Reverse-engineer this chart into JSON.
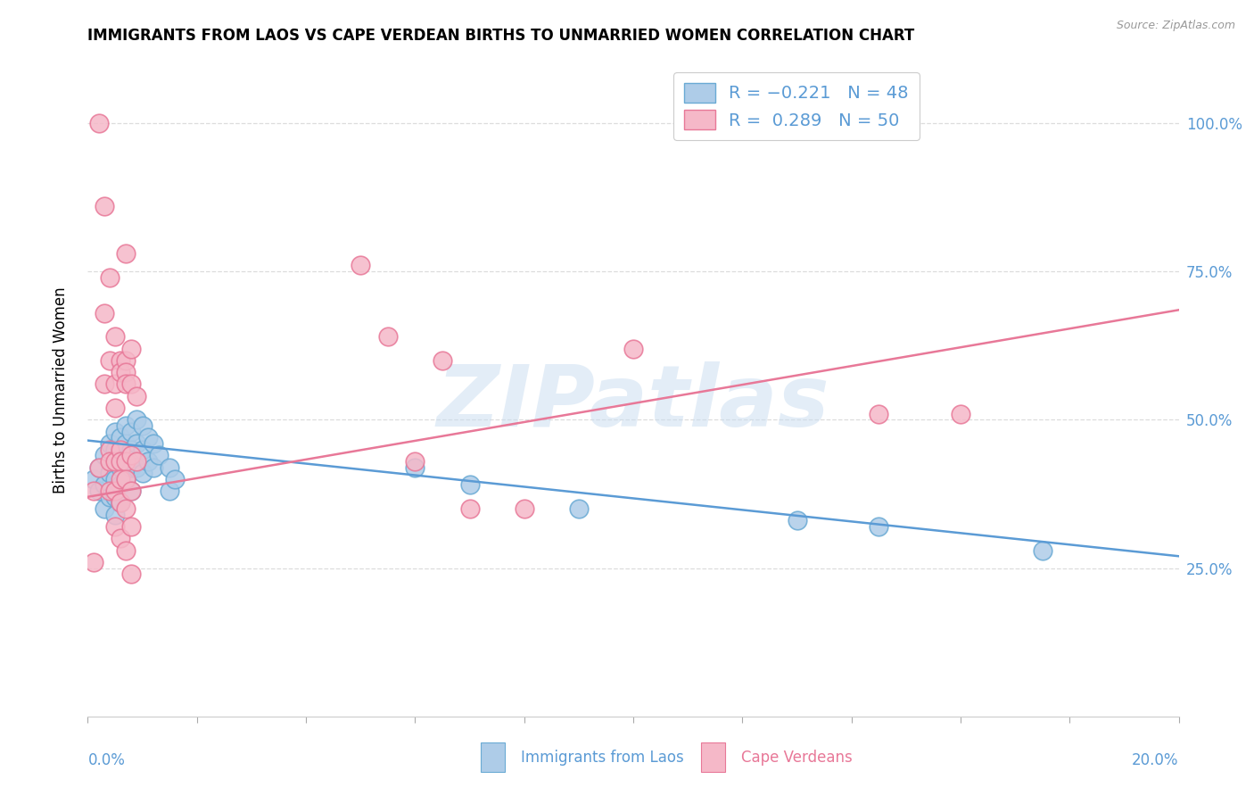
{
  "title": "IMMIGRANTS FROM LAOS VS CAPE VERDEAN BIRTHS TO UNMARRIED WOMEN CORRELATION CHART",
  "source": "Source: ZipAtlas.com",
  "ylabel": "Births to Unmarried Women",
  "right_ytick_labels": [
    "100.0%",
    "75.0%",
    "50.0%",
    "25.0%"
  ],
  "right_ytick_vals": [
    1.0,
    0.75,
    0.5,
    0.25
  ],
  "legend_r1": "R = −0.221",
  "legend_n1": "N = 48",
  "legend_r2": "R =  0.289",
  "legend_n2": "N = 50",
  "blue_fill": "#AECCE8",
  "blue_edge": "#6aaad4",
  "pink_fill": "#F5B8C8",
  "pink_edge": "#E87898",
  "blue_trend": "#5B9BD5",
  "pink_trend": "#E87898",
  "xlim": [
    0.0,
    0.2
  ],
  "ylim": [
    0.0,
    1.1
  ],
  "blue_scatter_x": [
    0.001,
    0.002,
    0.002,
    0.003,
    0.003,
    0.003,
    0.004,
    0.004,
    0.004,
    0.005,
    0.005,
    0.005,
    0.005,
    0.005,
    0.005,
    0.006,
    0.006,
    0.006,
    0.006,
    0.006,
    0.007,
    0.007,
    0.007,
    0.007,
    0.008,
    0.008,
    0.008,
    0.008,
    0.009,
    0.009,
    0.009,
    0.01,
    0.01,
    0.01,
    0.011,
    0.011,
    0.012,
    0.012,
    0.013,
    0.015,
    0.015,
    0.016,
    0.06,
    0.07,
    0.09,
    0.13,
    0.145,
    0.175
  ],
  "blue_scatter_y": [
    0.4,
    0.42,
    0.38,
    0.44,
    0.39,
    0.35,
    0.46,
    0.41,
    0.37,
    0.48,
    0.45,
    0.43,
    0.4,
    0.37,
    0.34,
    0.47,
    0.45,
    0.42,
    0.39,
    0.36,
    0.49,
    0.46,
    0.43,
    0.4,
    0.48,
    0.45,
    0.42,
    0.38,
    0.5,
    0.46,
    0.42,
    0.49,
    0.45,
    0.41,
    0.47,
    0.43,
    0.46,
    0.42,
    0.44,
    0.42,
    0.38,
    0.4,
    0.42,
    0.39,
    0.35,
    0.33,
    0.32,
    0.28
  ],
  "pink_scatter_x": [
    0.001,
    0.001,
    0.002,
    0.002,
    0.003,
    0.003,
    0.003,
    0.004,
    0.004,
    0.004,
    0.004,
    0.004,
    0.005,
    0.005,
    0.005,
    0.005,
    0.005,
    0.005,
    0.006,
    0.006,
    0.006,
    0.006,
    0.006,
    0.006,
    0.006,
    0.007,
    0.007,
    0.007,
    0.007,
    0.007,
    0.007,
    0.007,
    0.007,
    0.008,
    0.008,
    0.008,
    0.008,
    0.008,
    0.008,
    0.009,
    0.009,
    0.05,
    0.055,
    0.06,
    0.065,
    0.07,
    0.08,
    0.1,
    0.145,
    0.16
  ],
  "pink_scatter_y": [
    0.38,
    0.26,
    1.0,
    0.42,
    0.68,
    0.86,
    0.56,
    0.74,
    0.6,
    0.45,
    0.43,
    0.38,
    0.64,
    0.56,
    0.52,
    0.43,
    0.38,
    0.32,
    0.6,
    0.58,
    0.45,
    0.43,
    0.4,
    0.36,
    0.3,
    0.78,
    0.6,
    0.58,
    0.56,
    0.43,
    0.4,
    0.35,
    0.28,
    0.62,
    0.56,
    0.44,
    0.38,
    0.32,
    0.24,
    0.54,
    0.43,
    0.76,
    0.64,
    0.43,
    0.6,
    0.35,
    0.35,
    0.62,
    0.51,
    0.51
  ],
  "blue_trend_x": [
    0.0,
    0.2
  ],
  "blue_trend_y": [
    0.465,
    0.27
  ],
  "pink_trend_x": [
    0.0,
    0.2
  ],
  "pink_trend_y": [
    0.37,
    0.685
  ],
  "watermark": "ZIPatlas",
  "bottom_label_blue": "Immigrants from Laos",
  "bottom_label_pink": "Cape Verdeans"
}
